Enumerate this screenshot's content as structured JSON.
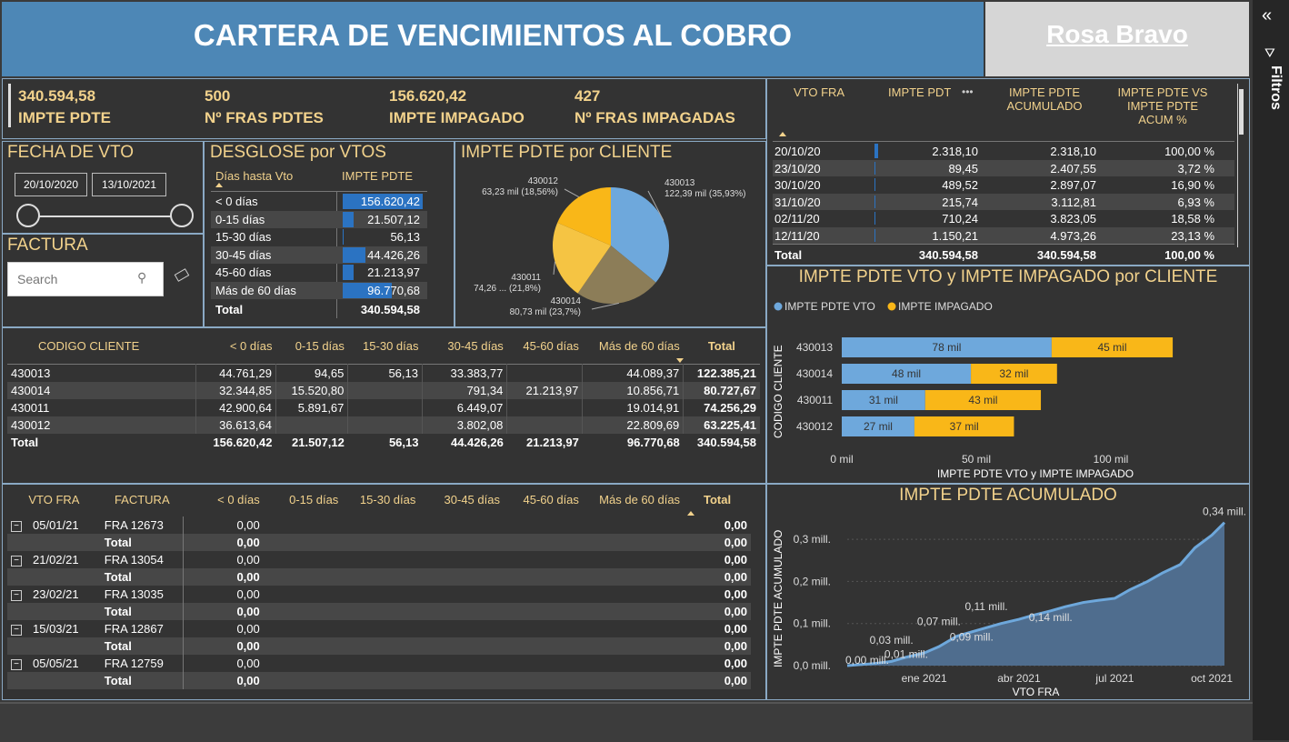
{
  "header": {
    "title": "CARTERA DE VENCIMIENTOS AL COBRO",
    "user": "Rosa Bravo"
  },
  "filters_pane": {
    "label": "Filtros"
  },
  "kpis": [
    {
      "value": "340.594,58",
      "label": "IMPTE PDTE"
    },
    {
      "value": "500",
      "label": "Nº FRAS PDTES"
    },
    {
      "value": "156.620,42",
      "label": "IMPTE IMPAGADO"
    },
    {
      "value": "427",
      "label": "Nº FRAS IMPAGADAS"
    }
  ],
  "fecha": {
    "title": "FECHA DE VTO",
    "from": "20/10/2020",
    "to": "13/10/2021"
  },
  "factura": {
    "title": "FACTURA",
    "placeholder": "Search"
  },
  "desglose": {
    "title": "DESGLOSE por VTOS",
    "col1": "Días hasta Vto",
    "col2": "IMPTE PDTE",
    "rows": [
      {
        "label": "< 0 días",
        "value": "156.620,42",
        "frac": 1.0
      },
      {
        "label": "0-15 días",
        "value": "21.507,12",
        "frac": 0.137
      },
      {
        "label": "15-30 días",
        "value": "56,13",
        "frac": 0.0
      },
      {
        "label": "30-45 días",
        "value": "44.426,26",
        "frac": 0.284
      },
      {
        "label": "45-60 días",
        "value": "21.213,97",
        "frac": 0.135
      },
      {
        "label": "Más de 60 días",
        "value": "96.770,68",
        "frac": 0.618
      }
    ],
    "total_label": "Total",
    "total": "340.594,58"
  },
  "pie": {
    "title": "IMPTE PDTE por CLIENTE",
    "slices": [
      {
        "name": "430013",
        "label": "122,39 mil (35,93%)",
        "pct": 35.93,
        "color": "#6ea8dc"
      },
      {
        "name": "430014",
        "label": "80,73 mil (23,7%)",
        "pct": 23.7,
        "color": "#8c7d58"
      },
      {
        "name": "430011",
        "label": "74,26 ... (21,8%)",
        "pct": 21.8,
        "color": "#f5c443"
      },
      {
        "name": "430012",
        "label": "63,23 mil (18,56%)",
        "pct": 18.56,
        "color": "#f9b718"
      }
    ]
  },
  "vto_table": {
    "headers": [
      "VTO FRA",
      "IMPTE PDT",
      "IMPTE PDTE ACUMULADO",
      "IMPTE PDTE VS IMPTE PDTE ACUM %"
    ],
    "more": "•••",
    "rows": [
      [
        "20/10/20",
        "2.318,10",
        "2.318,10",
        "100,00 %"
      ],
      [
        "23/10/20",
        "89,45",
        "2.407,55",
        "3,72 %"
      ],
      [
        "30/10/20",
        "489,52",
        "2.897,07",
        "16,90 %"
      ],
      [
        "31/10/20",
        "215,74",
        "3.112,81",
        "6,93 %"
      ],
      [
        "02/11/20",
        "710,24",
        "3.823,05",
        "18,58 %"
      ],
      [
        "12/11/20",
        "1.150,21",
        "4.973,26",
        "23,13 %"
      ]
    ],
    "total": [
      "Total",
      "340.594,58",
      "340.594,58",
      "100,00 %"
    ]
  },
  "client_matrix": {
    "headers": [
      "CODIGO CLIENTE",
      "< 0 días",
      "0-15 días",
      "15-30 días",
      "30-45 días",
      "45-60 días",
      "Más de 60 días",
      "Total"
    ],
    "rows": [
      [
        "430013",
        "44.761,29",
        "94,65",
        "56,13",
        "33.383,77",
        "",
        "44.089,37",
        "122.385,21"
      ],
      [
        "430014",
        "32.344,85",
        "15.520,80",
        "",
        "791,34",
        "21.213,97",
        "10.856,71",
        "80.727,67"
      ],
      [
        "430011",
        "42.900,64",
        "5.891,67",
        "",
        "6.449,07",
        "",
        "19.014,91",
        "74.256,29"
      ],
      [
        "430012",
        "36.613,64",
        "",
        "",
        "3.802,08",
        "",
        "22.809,69",
        "63.225,41"
      ]
    ],
    "total": [
      "Total",
      "156.620,42",
      "21.507,12",
      "56,13",
      "44.426,26",
      "21.213,97",
      "96.770,68",
      "340.594,58"
    ]
  },
  "invoice_matrix": {
    "headers": [
      "VTO FRA",
      "FACTURA",
      "< 0 días",
      "0-15 días",
      "15-30 días",
      "30-45 días",
      "45-60 días",
      "Más de 60 días",
      "Total"
    ],
    "groups": [
      {
        "date": "05/01/21",
        "factura": "FRA 12673",
        "v": "0,00",
        "t": "0,00",
        "total_label": "Total",
        "tv": "0,00",
        "tt": "0,00"
      },
      {
        "date": "21/02/21",
        "factura": "FRA 13054",
        "v": "0,00",
        "t": "0,00",
        "total_label": "Total",
        "tv": "0,00",
        "tt": "0,00"
      },
      {
        "date": "23/02/21",
        "factura": "FRA 13035",
        "v": "0,00",
        "t": "0,00",
        "total_label": "Total",
        "tv": "0,00",
        "tt": "0,00"
      },
      {
        "date": "15/03/21",
        "factura": "FRA 12867",
        "v": "0,00",
        "t": "0,00",
        "total_label": "Total",
        "tv": "0,00",
        "tt": "0,00"
      },
      {
        "date": "05/05/21",
        "factura": "FRA 12759",
        "v": "0,00",
        "t": "0,00",
        "total_label": "Total",
        "tv": "0,00",
        "tt": "0,00"
      }
    ]
  },
  "bar_chart": {
    "title": "IMPTE PDTE VTO y IMPTE IMPAGADO por CLIENTE",
    "ylabel": "CODIGO CLIENTE",
    "xlabel": "IMPTE PDTE VTO y IMPTE IMPAGADO",
    "xticks": [
      "0 mil",
      "50 mil",
      "100 mil"
    ]
  },
  "area_chart": {
    "title": "IMPTE PDTE ACUMULADO",
    "ylabel": "IMPTE PDTE ACUMULADO",
    "xlabel": "VTO FRA",
    "yticks": [
      "0,0 mill.",
      "0,1 mill.",
      "0,2 mill.",
      "0,3 mill."
    ],
    "xticks": [
      "ene 2021",
      "abr 2021",
      "jul 2021",
      "oct 2021"
    ],
    "labels": [
      "0,00 mill.",
      "0,01 mill.",
      "0,03 mill.",
      "0,07 mill.",
      "0,09 mill.",
      "0,11 mill.",
      "0,14 mill.",
      "0,34 mill."
    ]
  },
  "chart_data": [
    {
      "type": "bar",
      "title": "IMPTE PDTE VTO y IMPTE IMPAGADO por CLIENTE",
      "categories": [
        "430013",
        "430014",
        "430011",
        "430012"
      ],
      "series": [
        {
          "name": "IMPTE PDTE VTO",
          "values": [
            78,
            48,
            31,
            27
          ],
          "color": "#6ea8dc"
        },
        {
          "name": "IMPTE IMPAGADO",
          "values": [
            45,
            32,
            43,
            37
          ],
          "color": "#f9b718"
        }
      ],
      "value_labels": [
        [
          "78 mil",
          "48 mil",
          "31 mil",
          "27 mil"
        ],
        [
          "45 mil",
          "32 mil",
          "43 mil",
          "37 mil"
        ]
      ],
      "xlim": [
        0,
        130
      ],
      "legend": "top-left"
    },
    {
      "type": "area",
      "title": "IMPTE PDTE ACUMULADO",
      "x": [
        "2020-10-20",
        "2020-11-15",
        "2020-12-01",
        "2020-12-15",
        "2021-01-01",
        "2021-01-15",
        "2021-02-01",
        "2021-02-15",
        "2021-03-01",
        "2021-03-15",
        "2021-04-01",
        "2021-04-15",
        "2021-05-01",
        "2021-05-15",
        "2021-06-01",
        "2021-06-15",
        "2021-07-01",
        "2021-07-15",
        "2021-08-01",
        "2021-08-15",
        "2021-09-01",
        "2021-09-15",
        "2021-10-01",
        "2021-10-13"
      ],
      "y": [
        0.0,
        0.005,
        0.01,
        0.02,
        0.03,
        0.045,
        0.07,
        0.08,
        0.09,
        0.1,
        0.11,
        0.12,
        0.13,
        0.14,
        0.15,
        0.155,
        0.16,
        0.18,
        0.2,
        0.22,
        0.24,
        0.28,
        0.31,
        0.34
      ],
      "ylim": [
        0,
        0.35
      ],
      "color": "#6ea8dc"
    }
  ]
}
